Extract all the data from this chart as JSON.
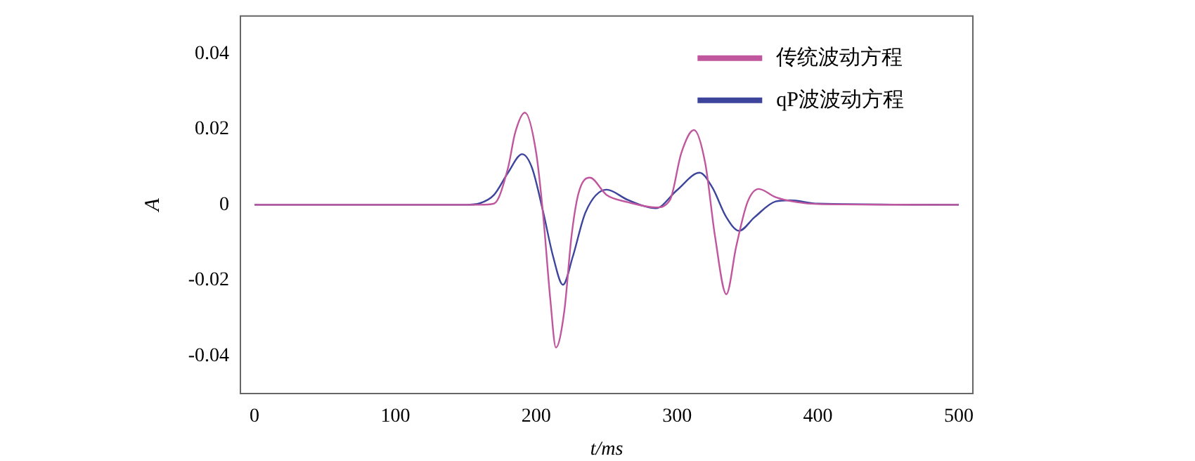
{
  "chart_data": {
    "type": "line",
    "xlabel": "t/ms",
    "ylabel": "A",
    "xlim": [
      -10,
      510
    ],
    "xticks": [
      0,
      100,
      200,
      300,
      400,
      500
    ],
    "ylim": [
      -0.05,
      0.05
    ],
    "yticks": [
      -0.04,
      -0.02,
      0,
      0.02,
      0.04
    ],
    "grid": false,
    "legend": "top right",
    "marker": "none",
    "line_style": "solid",
    "series": [
      {
        "name": "传统波动方程",
        "color": "#c0569e",
        "x": [
          0,
          160,
          170,
          180,
          185,
          192,
          200,
          205,
          210,
          214,
          220,
          225,
          230,
          238,
          250,
          265,
          285,
          295,
          303,
          312,
          320,
          327,
          335,
          342,
          350,
          358,
          370,
          385,
          400,
          500
        ],
        "values": [
          0,
          0,
          0.0003,
          0.0098,
          0.019,
          0.0244,
          0.0137,
          -0.003,
          -0.025,
          -0.0378,
          -0.028,
          -0.0085,
          0.003,
          0.0072,
          0.0026,
          0.0007,
          -0.0007,
          0.0013,
          0.0137,
          0.0198,
          0.011,
          -0.0085,
          -0.0237,
          -0.011,
          0.0007,
          0.0042,
          0.002,
          0.0007,
          0.0002,
          0
        ]
      },
      {
        "name": "qP波波动方程",
        "color": "#3d449c",
        "x": [
          0,
          150,
          160,
          170,
          180,
          190,
          197,
          205,
          212,
          219,
          226,
          235,
          250,
          265,
          285,
          300,
          316,
          325,
          335,
          344,
          355,
          370,
          380,
          400,
          500
        ],
        "values": [
          0,
          0,
          0.0004,
          0.0026,
          0.0085,
          0.0134,
          0.0098,
          -0.002,
          -0.0137,
          -0.0212,
          -0.0137,
          -0.002,
          0.004,
          0.0013,
          -0.0009,
          0.0039,
          0.0085,
          0.0046,
          -0.0033,
          -0.0069,
          -0.0033,
          0.0009,
          0.0012,
          0.0003,
          0
        ]
      }
    ]
  }
}
